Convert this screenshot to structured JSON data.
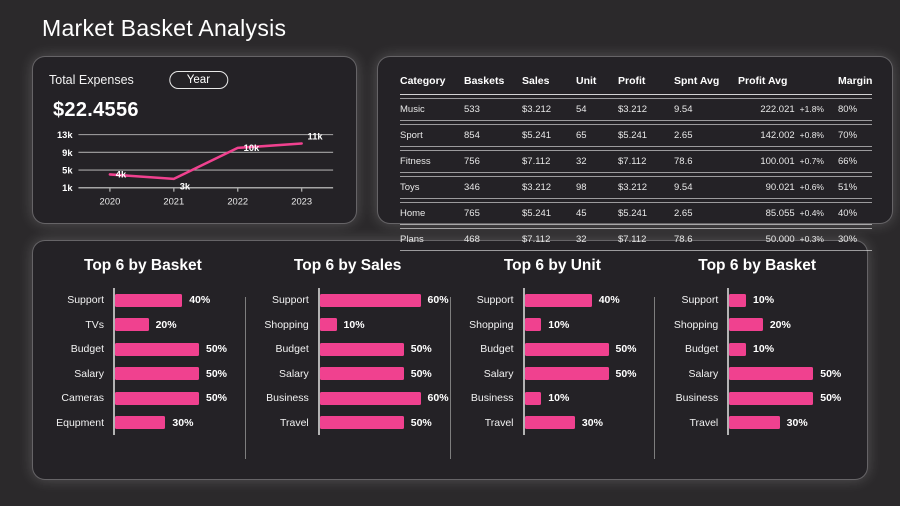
{
  "page": {
    "title": "Market Basket Analysis",
    "accent_color": "#f0418f",
    "background_color": "#2b292b"
  },
  "expenses_card": {
    "label": "Total Expenses",
    "period_button": "Year",
    "total": "$22.4556"
  },
  "table": {
    "headers": [
      "Category",
      "Baskets",
      "Sales",
      "Unit",
      "Profit",
      "Spnt Avg",
      "Profit Avg",
      "Margin"
    ],
    "rows": [
      {
        "category": "Music",
        "baskets": "533",
        "sales": "$3.212",
        "unit": "54",
        "profit": "$3.212",
        "spnt_avg": "9.54",
        "profit_avg": "222.021",
        "change": "+1.8%",
        "margin": "80%"
      },
      {
        "category": "Sport",
        "baskets": "854",
        "sales": "$5.241",
        "unit": "65",
        "profit": "$5.241",
        "spnt_avg": "2.65",
        "profit_avg": "142.002",
        "change": "+0.8%",
        "margin": "70%"
      },
      {
        "category": "Fitness",
        "baskets": "756",
        "sales": "$7.112",
        "unit": "32",
        "profit": "$7.112",
        "spnt_avg": "78.6",
        "profit_avg": "100.001",
        "change": "+0.7%",
        "margin": "66%"
      },
      {
        "category": "Toys",
        "baskets": "346",
        "sales": "$3.212",
        "unit": "98",
        "profit": "$3.212",
        "spnt_avg": "9.54",
        "profit_avg": "90.021",
        "change": "+0.6%",
        "margin": "51%"
      },
      {
        "category": "Home",
        "baskets": "765",
        "sales": "$5.241",
        "unit": "45",
        "profit": "$5.241",
        "spnt_avg": "2.65",
        "profit_avg": "85.055",
        "change": "+0.4%",
        "margin": "40%"
      },
      {
        "category": "Plans",
        "baskets": "468",
        "sales": "$7.112",
        "unit": "32",
        "profit": "$7.112",
        "spnt_avg": "78.6",
        "profit_avg": "50.000",
        "change": "+0.3%",
        "margin": "30%"
      }
    ]
  },
  "chart_data": [
    {
      "type": "line",
      "title": "Total Expenses",
      "x": [
        "2020",
        "2021",
        "2022",
        "2023"
      ],
      "values": [
        4000,
        3000,
        10000,
        11000
      ],
      "point_labels": [
        "4k",
        "3k",
        "10k",
        "11k"
      ],
      "ytick_labels": [
        "13k",
        "9k",
        "5k",
        "1k"
      ],
      "ytick_values": [
        13000,
        9000,
        5000,
        1000
      ],
      "ylim": [
        1000,
        13000
      ],
      "grid": true,
      "legend": "none",
      "line_color": "#f0418f"
    },
    {
      "type": "bar",
      "orientation": "horizontal",
      "title": "Top 6 by Basket",
      "categories": [
        "Support",
        "TVs",
        "Budget",
        "Salary",
        "Cameras",
        "Equpment"
      ],
      "values": [
        40,
        20,
        50,
        50,
        50,
        30
      ],
      "value_suffix": "%",
      "xlim": [
        0,
        60
      ],
      "bar_color": "#f0418f"
    },
    {
      "type": "bar",
      "orientation": "horizontal",
      "title": "Top 6 by Sales",
      "categories": [
        "Support",
        "Shopping",
        "Budget",
        "Salary",
        "Business",
        "Travel"
      ],
      "values": [
        60,
        10,
        50,
        50,
        60,
        50
      ],
      "value_suffix": "%",
      "xlim": [
        0,
        60
      ],
      "bar_color": "#f0418f"
    },
    {
      "type": "bar",
      "orientation": "horizontal",
      "title": "Top 6 by Unit",
      "categories": [
        "Support",
        "Shopping",
        "Budget",
        "Salary",
        "Business",
        "Travel"
      ],
      "values": [
        40,
        10,
        50,
        50,
        10,
        30
      ],
      "value_suffix": "%",
      "xlim": [
        0,
        60
      ],
      "bar_color": "#f0418f"
    },
    {
      "type": "bar",
      "orientation": "horizontal",
      "title": "Top 6 by Basket",
      "categories": [
        "Support",
        "Shopping",
        "Budget",
        "Salary",
        "Business",
        "Travel"
      ],
      "values": [
        10,
        20,
        10,
        50,
        50,
        30
      ],
      "value_suffix": "%",
      "xlim": [
        0,
        60
      ],
      "bar_color": "#f0418f"
    }
  ]
}
